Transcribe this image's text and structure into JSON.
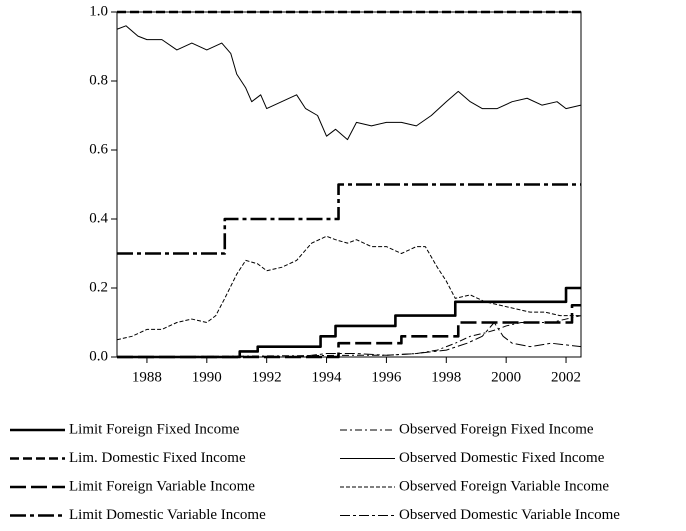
{
  "chart_data": {
    "type": "line",
    "xlim": [
      1987,
      2002.5
    ],
    "ylim": [
      0,
      1
    ],
    "xticks": [
      1988,
      1990,
      1992,
      1994,
      1996,
      1998,
      2000,
      2002
    ],
    "yticks": [
      {
        "value": 0,
        "label": "0.0"
      },
      0.2,
      0.4,
      0.6,
      0.8,
      {
        "value": 1,
        "label": "1.0"
      }
    ],
    "series": [
      {
        "name": "Limit Foreign Fixed Income",
        "color": "#000",
        "width": 2.6,
        "dash": "none",
        "x": [
          1987,
          1991.1,
          1991.1,
          1991.7,
          1991.7,
          1993.8,
          1993.8,
          1994.3,
          1994.3,
          1996.3,
          1996.3,
          1998.3,
          1998.3,
          2002,
          2002,
          2002.5
        ],
        "values": [
          0,
          0,
          0.016,
          0.016,
          0.03,
          0.03,
          0.06,
          0.06,
          0.09,
          0.09,
          0.12,
          0.12,
          0.16,
          0.16,
          0.2,
          0.2
        ]
      },
      {
        "name": "Lim. Domestic Fixed Income",
        "color": "#000",
        "width": 2.6,
        "dash": "9 4",
        "x": [
          1987,
          2002.5
        ],
        "values": [
          1,
          1
        ]
      },
      {
        "name": "Limit Foreign Variable Income",
        "color": "#000",
        "width": 2.6,
        "dash": "16 5",
        "x": [
          1987,
          1994.4,
          1994.4,
          1996.5,
          1996.5,
          1998.4,
          1998.4,
          2002.2,
          2002.2,
          2002.5
        ],
        "values": [
          0,
          0,
          0.04,
          0.04,
          0.06,
          0.06,
          0.1,
          0.1,
          0.15,
          0.15
        ]
      },
      {
        "name": "Limit Domestic Variable Income",
        "color": "#000",
        "width": 2.6,
        "dash": "16 4 4 4",
        "x": [
          1987,
          1990.6,
          1990.6,
          1994.4,
          1994.4,
          2002.5
        ],
        "values": [
          0.3,
          0.3,
          0.4,
          0.4,
          0.5,
          0.5
        ]
      },
      {
        "name": "Observed Foreign Fixed Income",
        "color": "#000",
        "width": 1,
        "dash": "7 3 2 3",
        "x": [
          1987,
          1995,
          1996,
          1997,
          1997.7,
          1998.3,
          1998.8,
          1999.3,
          1999.7,
          2000,
          2000.5,
          2001,
          2001.5,
          2002,
          2002.5
        ],
        "values": [
          0,
          0.005,
          0.005,
          0.01,
          0.02,
          0.04,
          0.06,
          0.07,
          0.08,
          0.09,
          0.1,
          0.1,
          0.1,
          0.11,
          0.12
        ]
      },
      {
        "name": "Observed Domestic Fixed Income",
        "color": "#000",
        "width": 1,
        "dash": "none",
        "x": [
          1987,
          1987.3,
          1987.7,
          1988,
          1988.5,
          1989,
          1989.5,
          1990,
          1990.5,
          1990.8,
          1991,
          1991.3,
          1991.5,
          1991.8,
          1992,
          1992.5,
          1993,
          1993.3,
          1993.7,
          1994,
          1994.3,
          1994.7,
          1995,
          1995.5,
          1996,
          1996.5,
          1997,
          1997.5,
          1998,
          1998.4,
          1998.8,
          1999.2,
          1999.7,
          2000.2,
          2000.7,
          2001.2,
          2001.7,
          2002,
          2002.5
        ],
        "values": [
          0.95,
          0.96,
          0.93,
          0.92,
          0.92,
          0.89,
          0.91,
          0.89,
          0.91,
          0.88,
          0.82,
          0.78,
          0.74,
          0.76,
          0.72,
          0.74,
          0.76,
          0.72,
          0.7,
          0.64,
          0.66,
          0.63,
          0.68,
          0.67,
          0.68,
          0.68,
          0.67,
          0.7,
          0.74,
          0.77,
          0.74,
          0.72,
          0.72,
          0.74,
          0.75,
          0.73,
          0.74,
          0.72,
          0.73
        ]
      },
      {
        "name": "Observed Foreign Variable Income",
        "color": "#000",
        "width": 1,
        "dash": "4 2",
        "x": [
          1987,
          1987.5,
          1988,
          1988.5,
          1989,
          1989.5,
          1990,
          1990.3,
          1990.6,
          1991,
          1991.3,
          1991.7,
          1992,
          1992.5,
          1993,
          1993.5,
          1994,
          1994.3,
          1994.7,
          1995,
          1995.5,
          1996,
          1996.5,
          1997,
          1997.3,
          1997.7,
          1998,
          1998.3,
          1998.8,
          1999.3,
          1999.8,
          2000.3,
          2000.8,
          2001.3,
          2001.8,
          2002.5
        ],
        "values": [
          0.05,
          0.06,
          0.08,
          0.08,
          0.1,
          0.11,
          0.1,
          0.12,
          0.17,
          0.24,
          0.28,
          0.27,
          0.25,
          0.26,
          0.28,
          0.33,
          0.35,
          0.34,
          0.33,
          0.34,
          0.32,
          0.32,
          0.3,
          0.32,
          0.32,
          0.26,
          0.22,
          0.17,
          0.18,
          0.16,
          0.15,
          0.14,
          0.13,
          0.13,
          0.12,
          0.12
        ]
      },
      {
        "name": "Observed Domestic Variable Income",
        "color": "#000",
        "width": 1,
        "dash": "10 3 3 3",
        "x": [
          1987,
          1993,
          1994,
          1995,
          1996,
          1997,
          1998,
          1998.7,
          1999.2,
          1999.6,
          1999.9,
          2000.2,
          2000.8,
          2001.5,
          2002.5
        ],
        "values": [
          0,
          0,
          0.01,
          0.01,
          0.005,
          0.01,
          0.02,
          0.04,
          0.06,
          0.1,
          0.06,
          0.04,
          0.03,
          0.04,
          0.03
        ]
      }
    ]
  }
}
